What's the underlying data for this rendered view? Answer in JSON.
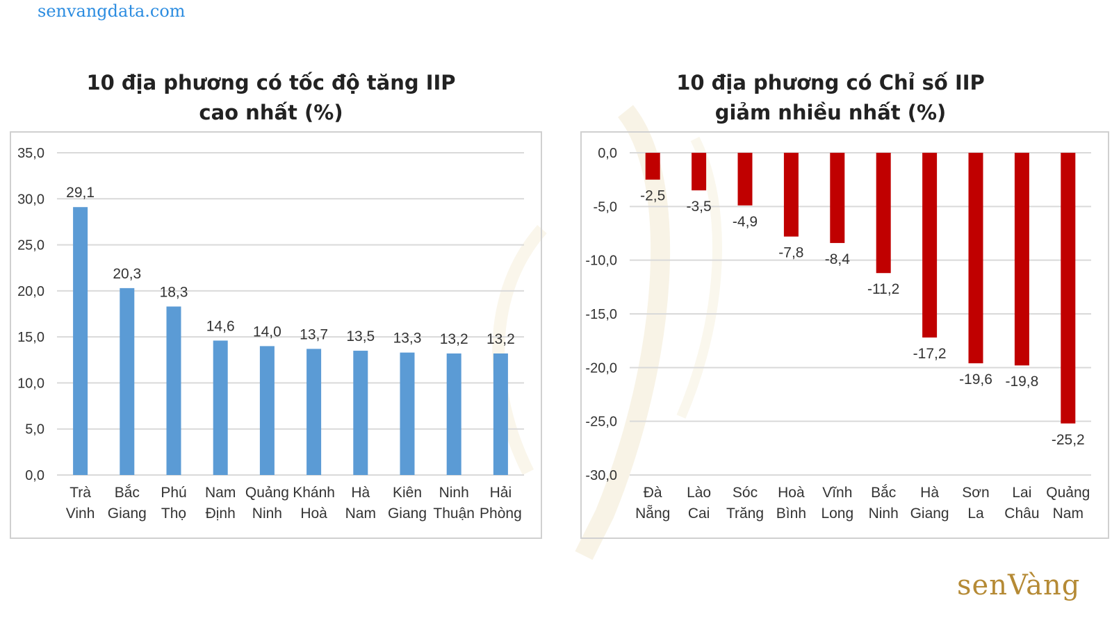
{
  "site_url": "senvangdata.com",
  "brand": "senVàng",
  "colors": {
    "positive": "#5b9bd5",
    "negative": "#c00000",
    "grid": "#d9d9d9",
    "brand": "#b58a35"
  },
  "chart_data": [
    {
      "type": "bar",
      "title_lines": [
        "10 địa phương có tốc độ tăng IIP",
        "cao nhất (%)"
      ],
      "categories": [
        [
          "Trà",
          "Vinh"
        ],
        [
          "Bắc",
          "Giang"
        ],
        [
          "Phú",
          "Thọ"
        ],
        [
          "Nam",
          "Định"
        ],
        [
          "Quảng",
          "Ninh"
        ],
        [
          "Khánh",
          "Hoà"
        ],
        [
          "Hà",
          "Nam"
        ],
        [
          "Kiên",
          "Giang"
        ],
        [
          "Ninh",
          "Thuận"
        ],
        [
          "Hải",
          "Phòng"
        ]
      ],
      "values": [
        29.1,
        20.3,
        18.3,
        14.6,
        14.0,
        13.7,
        13.5,
        13.3,
        13.2,
        13.2
      ],
      "value_labels": [
        "29,1",
        "20,3",
        "18,3",
        "14,6",
        "14,0",
        "13,7",
        "13,5",
        "13,3",
        "13,2",
        "13,2"
      ],
      "ylim": [
        0,
        35
      ],
      "yticks": [
        "0,0",
        "5,0",
        "10,0",
        "15,0",
        "20,0",
        "25,0",
        "30,0",
        "35,0"
      ],
      "grid": true
    },
    {
      "type": "bar",
      "title_lines": [
        "10 địa phương có Chỉ số IIP",
        "giảm nhiều nhất (%)"
      ],
      "categories": [
        [
          "Đà",
          "Nẵng"
        ],
        [
          "Lào",
          "Cai"
        ],
        [
          "Sóc",
          "Trăng"
        ],
        [
          "Hoà",
          "Bình"
        ],
        [
          "Vĩnh",
          "Long"
        ],
        [
          "Bắc",
          "Ninh"
        ],
        [
          "Hà",
          "Giang"
        ],
        [
          "Sơn",
          "La"
        ],
        [
          "Lai",
          "Châu"
        ],
        [
          "Quảng",
          "Nam"
        ]
      ],
      "values": [
        -2.5,
        -3.5,
        -4.9,
        -7.8,
        -8.4,
        -11.2,
        -17.2,
        -19.6,
        -19.8,
        -25.2
      ],
      "value_labels": [
        "-2,5",
        "-3,5",
        "-4,9",
        "-7,8",
        "-8,4",
        "-11,2",
        "-17,2",
        "-19,6",
        "-19,8",
        "-25,2"
      ],
      "ylim": [
        -30,
        0
      ],
      "yticks": [
        "-30,0",
        "-25,0",
        "-20,0",
        "-15,0",
        "-10,0",
        "-5,0",
        "0,0"
      ],
      "grid": true
    }
  ]
}
